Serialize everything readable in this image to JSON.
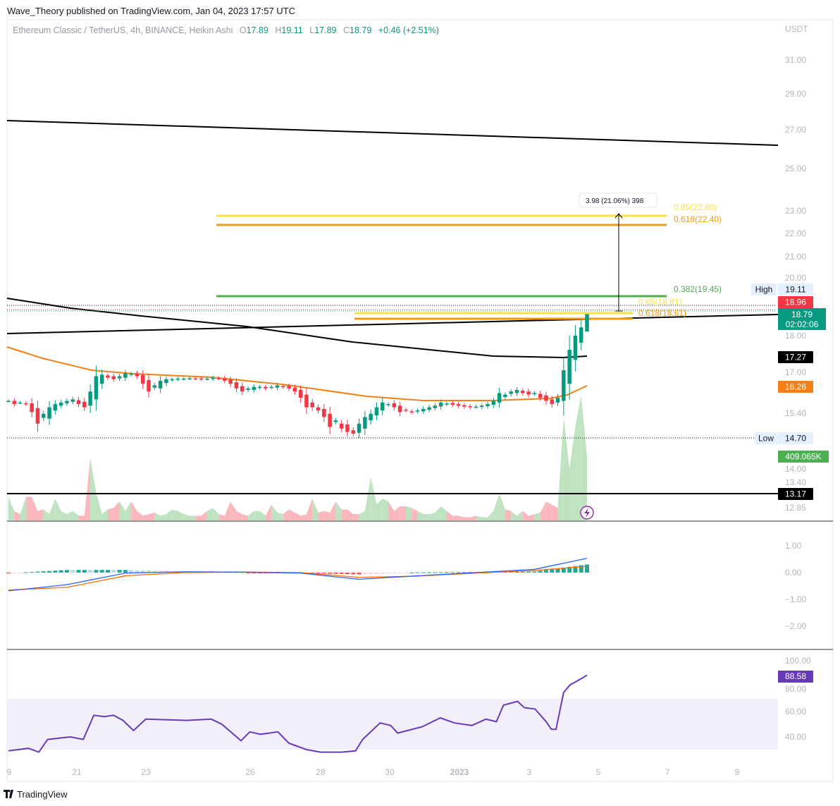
{
  "header": {
    "published": "Wave_Theory published on TradingView.com, Jan 04, 2023 17:57 UTC",
    "symbol": "Ethereum Classic / TetherUS, 4h, BINANCE, Heikin Ashi",
    "o_label": "O",
    "o": "17.89",
    "h_label": "H",
    "h": "19.11",
    "l_label": "L",
    "l": "17.89",
    "c_label": "C",
    "c": "18.79",
    "change": "+0.46 (+2.51%)"
  },
  "colors": {
    "up": "#089981",
    "down": "#f23645",
    "ema": "#f57f17",
    "rsi": "#673ab7",
    "fib_yellow": "#fbe13b",
    "fib_orange": "#f59a0c",
    "fib_green": "#4caf50"
  },
  "footer": {
    "brand": "TradingView"
  },
  "chart_data": [
    {
      "type": "candlestick",
      "title": "Ethereum Classic / TetherUS, 4h, BINANCE, Heikin Ashi",
      "currency": "USDT",
      "price_ticks": [
        "31.00",
        "29.00",
        "27.00",
        "25.00",
        "23.00",
        "22.00",
        "21.00",
        "20.00",
        "18.00",
        "17.00",
        "15.40",
        "14.00",
        "13.40",
        "12.85"
      ],
      "time_ticks": [
        "9",
        "21",
        "23",
        "26",
        "28",
        "30",
        "2023",
        "3",
        "5",
        "7",
        "9"
      ],
      "closes": [
        15.8,
        15.7,
        15.75,
        15.7,
        15.45,
        15.1,
        15.4,
        15.6,
        15.7,
        15.75,
        15.8,
        15.85,
        15.7,
        15.6,
        16.1,
        16.6,
        16.65,
        16.55,
        16.5,
        16.6,
        16.7,
        16.68,
        16.6,
        16.35,
        16.1,
        16.3,
        16.45,
        16.5,
        16.5,
        16.52,
        16.52,
        16.53,
        16.52,
        16.5,
        16.52,
        16.55,
        16.52,
        16.45,
        16.35,
        16.2,
        16.1,
        16.2,
        16.25,
        16.25,
        16.2,
        16.25,
        16.3,
        16.25,
        16.2,
        16.1,
        15.9,
        15.6,
        15.6,
        15.5,
        15.3,
        15.0,
        15.2,
        14.95,
        14.85,
        14.8,
        15.1,
        15.3,
        15.4,
        15.6,
        15.75,
        15.7,
        15.6,
        15.45,
        15.5,
        15.45,
        15.5,
        15.55,
        15.6,
        15.65,
        15.75,
        15.72,
        15.68,
        15.65,
        15.62,
        15.6,
        15.62,
        15.65,
        15.7,
        15.8,
        16.05,
        16.0,
        16.1,
        16.15,
        16.05,
        16.0,
        16.05,
        15.9,
        15.8,
        15.7,
        15.9,
        16.8,
        17.5,
        18.0,
        18.3,
        18.79
      ],
      "volume_k": [
        150,
        60,
        40,
        150,
        150,
        60,
        70,
        40,
        140,
        60,
        40,
        60,
        30,
        30,
        400,
        180,
        40,
        70,
        80,
        120,
        60,
        120,
        60,
        30,
        40,
        50,
        30,
        40,
        70,
        60,
        40,
        30,
        30,
        30,
        60,
        80,
        40,
        30,
        120,
        60,
        40,
        30,
        60,
        60,
        30,
        100,
        50,
        40,
        70,
        50,
        30,
        40,
        140,
        50,
        60,
        50,
        120,
        70,
        70,
        40,
        40,
        60,
        280,
        100,
        140,
        120,
        60,
        90,
        90,
        80,
        60,
        40,
        40,
        50,
        90,
        60,
        30,
        30,
        20,
        20,
        30,
        20,
        20,
        60,
        170,
        70,
        60,
        30,
        60,
        30,
        40,
        50,
        120,
        100,
        80,
        660,
        330,
        600,
        800,
        409
      ],
      "fib_levels": [
        {
          "label": "0.65(22.80)",
          "value": 22.8,
          "color": "yellow"
        },
        {
          "label": "0.618(22.40)",
          "value": 22.4,
          "color": "orange"
        },
        {
          "label": "0.382(19.45)",
          "value": 19.45,
          "color": "green"
        },
        {
          "label": "0.65(18.81)",
          "value": 18.81,
          "color": "yellow"
        },
        {
          "label": "0.618(18.61)",
          "value": 18.61,
          "color": "orange"
        }
      ],
      "measure_label": "3.98 (21.06%) 398",
      "tags": {
        "high_label": "High",
        "high": "19.11",
        "prev": "18.96",
        "last": "18.79",
        "countdown": "02:02:06",
        "ma200": "17.27",
        "ema": "16.26",
        "low_label": "Low",
        "low": "14.70",
        "volume": "409.065K",
        "support": "13.17"
      }
    },
    {
      "type": "line",
      "title": "MACD",
      "y_ticks": [
        "1.00",
        "0.00",
        "−1.00",
        "−2.00"
      ],
      "sample_every_bars": 10,
      "macd": [
        -0.68,
        -0.45,
        -0.02,
        0.03,
        0.02,
        -0.02,
        -0.25,
        -0.12,
        0.0,
        0.12,
        0.58
      ],
      "signal": [
        -0.65,
        -0.55,
        -0.12,
        0.0,
        0.02,
        0.0,
        -0.18,
        -0.13,
        -0.02,
        0.08,
        0.25
      ]
    },
    {
      "type": "line",
      "title": "RSI",
      "y_ticks": [
        "100.00",
        "80.00",
        "60.00",
        "40.00"
      ],
      "band": [
        30,
        70
      ],
      "last": "88.58",
      "bar_index": [
        0,
        3.4,
        5.2,
        6.7,
        10.6,
        12.8,
        14.6,
        16.4,
        18,
        19.6,
        21.4,
        23.5,
        30.5,
        34.7,
        36.5,
        39.8,
        41.3,
        43.1,
        46.1,
        48,
        51,
        53.4,
        57,
        59.4,
        60.6,
        63.6,
        65.4,
        66.6,
        70.8,
        73.9,
        76.3,
        79.3,
        81.7,
        83.5,
        84.7,
        87.1,
        88.3,
        90.1,
        92,
        92.9,
        93.7,
        95,
        96.1,
        97.3,
        99
      ],
      "values": [
        29,
        31,
        28,
        38,
        40,
        38,
        57,
        56,
        57,
        53,
        45,
        54,
        53,
        54,
        50,
        37,
        44,
        42,
        44,
        35,
        30,
        28,
        28,
        29,
        38,
        51,
        49,
        43,
        48,
        55,
        51,
        49,
        54,
        52,
        65,
        68,
        63,
        62,
        52,
        46,
        46,
        75,
        81,
        84,
        88.58
      ]
    }
  ]
}
